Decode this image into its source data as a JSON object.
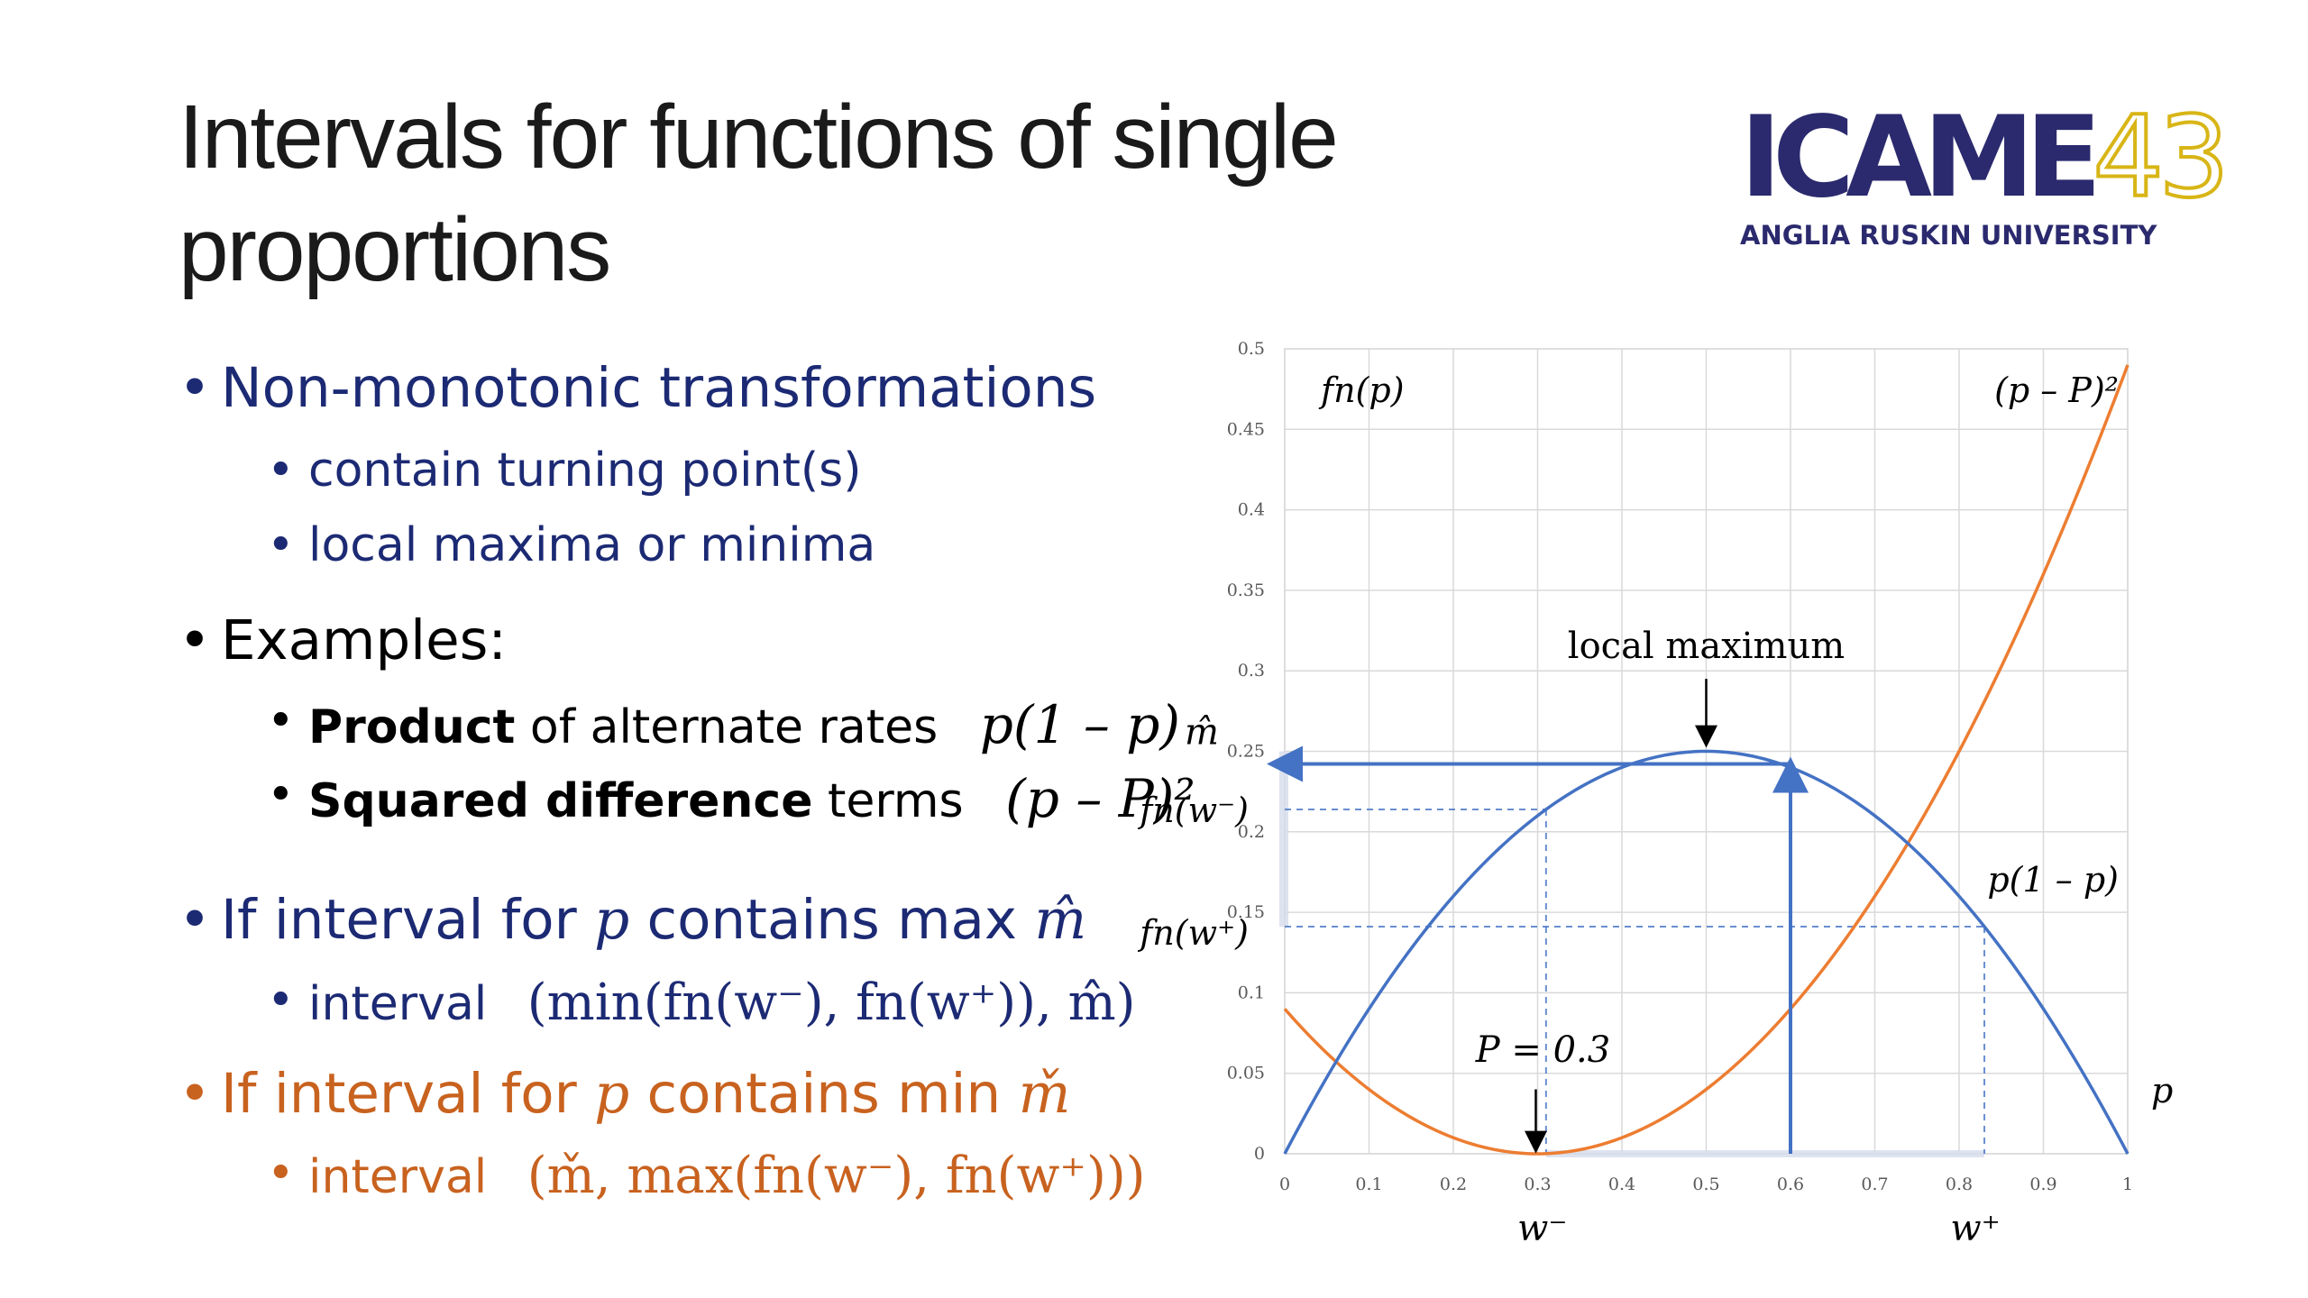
{
  "slide": {
    "title_line1": "Intervals for functions of single",
    "title_line2": "proportions"
  },
  "logo": {
    "main": "ICAME",
    "number": "43",
    "sub": "ANGLIA RUSKIN UNIVERSITY",
    "colors": {
      "main": "#2b2a6e",
      "number": "#d8b516"
    }
  },
  "bullets": {
    "b1": "Non-monotonic transformations",
    "b1_1": "contain turning point(s)",
    "b1_2": "local maxima or minima",
    "b2": "Examples:",
    "b2_1_bold": "Product",
    "b2_1_rest": " of alternate rates",
    "b2_1_math": "p(1 – p)",
    "b2_2_bold": "Squared difference",
    "b2_2_rest": " terms",
    "b2_2_math": "(p – P)²",
    "b3_pre": "If interval for ",
    "b3_var": "p",
    "b3_post": " contains max ",
    "b3_sym": "m̂",
    "b3_1_label": "interval",
    "b3_1_math": "(min(fn(w⁻), fn(w⁺)), m̂)",
    "b4_pre": "If interval for ",
    "b4_var": "p",
    "b4_post": " contains min ",
    "b4_sym": "m̌",
    "b4_1_label": "interval",
    "b4_1_math": "(m̌, max(fn(w⁻), fn(w⁺)))"
  },
  "colors": {
    "blue_text": "#1c2a74",
    "orange_text": "#c8621f",
    "product_curve": "#4472c4",
    "squared_curve": "#ed7d31"
  },
  "chart_data": {
    "type": "line",
    "xlim": [
      0,
      1
    ],
    "ylim": [
      0,
      0.5
    ],
    "x_ticks": [
      "0",
      "0.1",
      "0.2",
      "0.3",
      "0.4",
      "0.5",
      "0.6",
      "0.7",
      "0.8",
      "0.9",
      "1"
    ],
    "y_ticks": [
      "0",
      "0.05",
      "0.1",
      "0.15",
      "0.2",
      "0.25",
      "0.3",
      "0.35",
      "0.4",
      "0.45",
      "0.5"
    ],
    "grid": true,
    "xlabel": "p",
    "ylabel": "fn(p)",
    "P": 0.3,
    "w_minus": 0.31,
    "w_plus": 0.83,
    "series": [
      {
        "name": "p(1 – p)",
        "x": [
          0,
          0.05,
          0.1,
          0.15,
          0.2,
          0.25,
          0.3,
          0.35,
          0.4,
          0.45,
          0.5,
          0.55,
          0.6,
          0.65,
          0.7,
          0.75,
          0.8,
          0.85,
          0.9,
          0.95,
          1
        ],
        "y": [
          0,
          0.0475,
          0.09,
          0.1275,
          0.16,
          0.1875,
          0.21,
          0.2275,
          0.24,
          0.2475,
          0.25,
          0.2475,
          0.24,
          0.2275,
          0.21,
          0.1875,
          0.16,
          0.1275,
          0.09,
          0.0475,
          0
        ]
      },
      {
        "name": "(p – P)²",
        "x": [
          0,
          0.05,
          0.1,
          0.15,
          0.2,
          0.25,
          0.3,
          0.35,
          0.4,
          0.45,
          0.5,
          0.55,
          0.6,
          0.65,
          0.7,
          0.75,
          0.8,
          0.85,
          0.9,
          0.95,
          1
        ],
        "y": [
          0.09,
          0.0625,
          0.04,
          0.0225,
          0.01,
          0.0025,
          0,
          0.0025,
          0.01,
          0.0225,
          0.04,
          0.0625,
          0.09,
          0.1225,
          0.16,
          0.2025,
          0.25,
          0.3025,
          0.36,
          0.4225,
          0.49
        ]
      }
    ],
    "annotations": {
      "local_max": "local maximum",
      "P_label": "P = 0.3",
      "m_hat": "m̂",
      "fn_w_minus": "fn(w⁻)",
      "fn_w_plus": "fn(w⁺)",
      "w_minus": "w⁻",
      "w_plus": "w⁺",
      "curve1_label": "p(1 – p)",
      "curve2_label": "(p – P)²"
    }
  }
}
